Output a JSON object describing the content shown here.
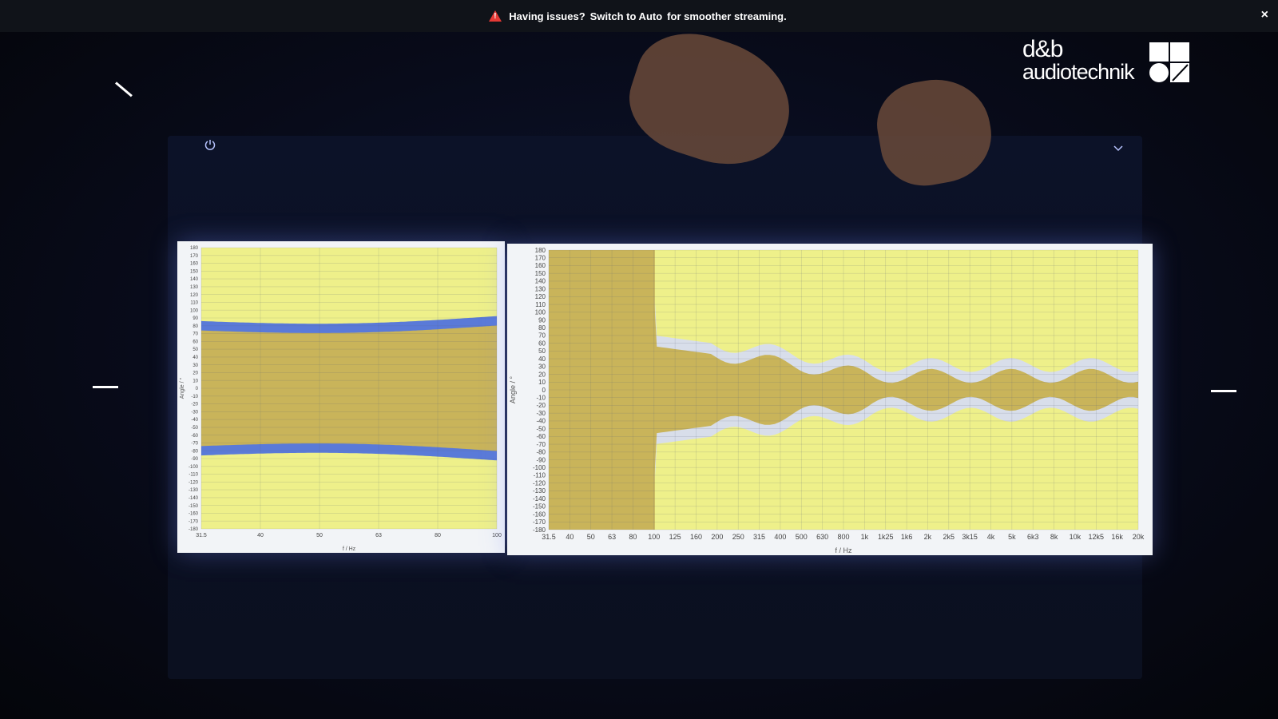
{
  "banner": {
    "prefix": "Having issues?",
    "link": "Switch to Auto",
    "suffix": "for smoother streaming.",
    "close": "×",
    "warning_color": "#e53935"
  },
  "logo": {
    "line1": "d&b",
    "line2": "audiotechnik"
  },
  "icons": [
    "warning-icon",
    "close-icon",
    "slash-icon",
    "power-icon",
    "chevron-down-icon",
    "dash-icon"
  ],
  "chart_data": [
    {
      "type": "heatmap",
      "xlabel": "f / Hz",
      "ylabel": "Angle / °",
      "x_ticks": [
        "31.5",
        "40",
        "50",
        "63",
        "80",
        "100"
      ],
      "y_ticks": [
        "180",
        "170",
        "160",
        "150",
        "140",
        "130",
        "120",
        "110",
        "100",
        "90",
        "80",
        "70",
        "60",
        "50",
        "40",
        "30",
        "20",
        "10",
        "0",
        "-10",
        "-20",
        "-30",
        "-40",
        "-50",
        "-60",
        "-70",
        "-80",
        "-90",
        "-100",
        "-110",
        "-120",
        "-130",
        "-140",
        "-150",
        "-160",
        "-170",
        "-180"
      ],
      "ylim": [
        -180,
        180
      ],
      "levels": [
        "#c9b45a",
        "#eef08a",
        "#a9e07a",
        "#55c98a",
        "#9fe0ea",
        "#4aa0e0",
        "#3a46c8",
        "#5a7ad8"
      ]
    },
    {
      "type": "heatmap",
      "xlabel": "f / Hz",
      "ylabel": "Angle / °",
      "x_ticks": [
        "31.5",
        "40",
        "50",
        "63",
        "80",
        "100",
        "125",
        "160",
        "200",
        "250",
        "315",
        "400",
        "500",
        "630",
        "800",
        "1k",
        "1k25",
        "1k6",
        "2k",
        "2k5",
        "3k15",
        "4k",
        "5k",
        "6k3",
        "8k",
        "10k",
        "12k5",
        "16k",
        "20k"
      ],
      "y_ticks": [
        "180",
        "170",
        "160",
        "150",
        "140",
        "130",
        "120",
        "110",
        "100",
        "90",
        "80",
        "70",
        "60",
        "50",
        "40",
        "30",
        "20",
        "10",
        "0",
        "-10",
        "-20",
        "-30",
        "-40",
        "-50",
        "-60",
        "-70",
        "-80",
        "-90",
        "-100",
        "-110",
        "-120",
        "-130",
        "-140",
        "-150",
        "-160",
        "-170",
        "-180"
      ],
      "ylim": [
        -180,
        180
      ],
      "levels": [
        "#c9b45a",
        "#eef08a",
        "#a9e07a",
        "#55c98a",
        "#9fe0ea",
        "#4aa0e0",
        "#3a46c8",
        "#d8deea"
      ]
    }
  ]
}
